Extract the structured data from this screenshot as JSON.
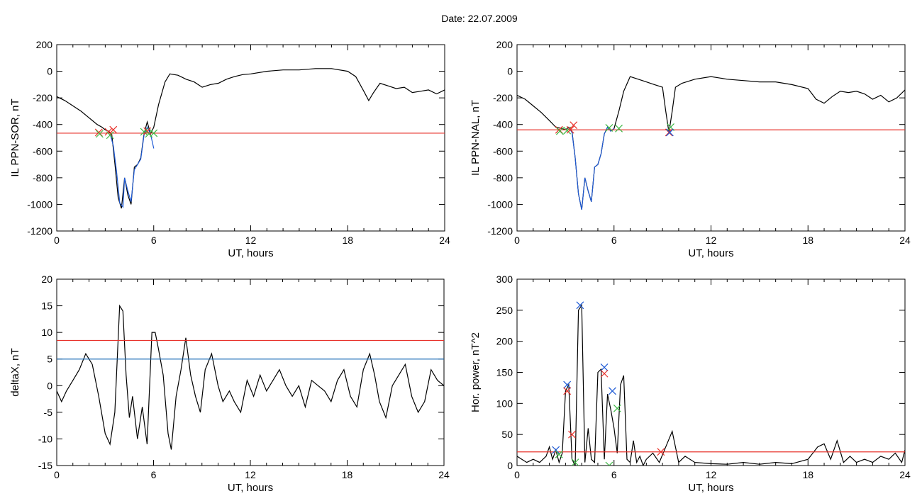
{
  "figure_title": "Date:  22.07.2009",
  "chart_data": [
    {
      "id": "sor",
      "type": "line",
      "ylabel": "IL PPN-SOR, nT",
      "xlabel": "UT, hours",
      "xlim": [
        0,
        24
      ],
      "ylim": [
        -1200,
        200
      ],
      "x_ticks": [
        0,
        6,
        12,
        18,
        24
      ],
      "y_ticks": [
        200,
        0,
        -200,
        -400,
        -600,
        -800,
        -1000,
        -1200
      ],
      "series": [
        {
          "color": "#000000",
          "x": [
            0,
            0.5,
            1,
            1.5,
            2,
            2.5,
            2.8,
            3.0,
            3.2,
            3.4,
            3.6,
            3.8,
            4.0,
            4.2,
            4.4,
            4.6,
            4.8,
            5.0,
            5.2,
            5.4,
            5.6,
            5.8,
            6.0,
            6.3,
            6.7,
            7.0,
            7.5,
            8,
            8.5,
            9,
            9.5,
            10,
            10.5,
            11,
            11.5,
            12,
            13,
            14,
            15,
            16,
            17,
            18,
            18.5,
            19,
            19.3,
            19.6,
            20,
            20.5,
            21,
            21.5,
            22,
            22.5,
            23,
            23.5,
            24
          ],
          "y": [
            -190,
            -220,
            -260,
            -300,
            -350,
            -400,
            -420,
            -440,
            -450,
            -470,
            -700,
            -950,
            -1030,
            -800,
            -930,
            -1000,
            -720,
            -700,
            -650,
            -470,
            -380,
            -470,
            -420,
            -250,
            -80,
            -20,
            -30,
            -60,
            -80,
            -120,
            -100,
            -90,
            -60,
            -40,
            -25,
            -20,
            0,
            10,
            10,
            20,
            20,
            0,
            -40,
            -150,
            -220,
            -160,
            -90,
            -110,
            -130,
            -120,
            -160,
            -150,
            -140,
            -170,
            -140
          ]
        },
        {
          "color": "#1f5bd6",
          "x": [
            3.3,
            3.5,
            3.7,
            3.9,
            4.1,
            4.2,
            4.4,
            4.6,
            4.8,
            5.0,
            5.2,
            5.4,
            5.6,
            5.8,
            6.0
          ],
          "y": [
            -470,
            -560,
            -750,
            -990,
            -1020,
            -800,
            -900,
            -980,
            -740,
            -700,
            -660,
            -480,
            -420,
            -470,
            -580
          ]
        }
      ],
      "threshold": {
        "value": -465,
        "color": "#e8312a"
      },
      "markers": [
        {
          "x": 2.6,
          "y": -460,
          "symbol": "x",
          "color": "#e8312a"
        },
        {
          "x": 2.65,
          "y": -470,
          "symbol": "x",
          "color": "#3cb843"
        },
        {
          "x": 3.2,
          "y": -455,
          "symbol": "x",
          "color": "#e8312a"
        },
        {
          "x": 3.5,
          "y": -440,
          "symbol": "x",
          "color": "#e8312a"
        },
        {
          "x": 3.3,
          "y": -480,
          "symbol": "x",
          "color": "#3cb843"
        },
        {
          "x": 5.4,
          "y": -455,
          "symbol": "x",
          "color": "#3cb843"
        },
        {
          "x": 5.6,
          "y": -450,
          "symbol": "x",
          "color": "#e8312a"
        },
        {
          "x": 5.7,
          "y": -470,
          "symbol": "x",
          "color": "#3cb843"
        },
        {
          "x": 6.0,
          "y": -465,
          "symbol": "x",
          "color": "#3cb843"
        }
      ]
    },
    {
      "id": "nal",
      "type": "line",
      "ylabel": "IL PPN-NAL, nT",
      "xlabel": "UT, hours",
      "xlim": [
        0,
        24
      ],
      "ylim": [
        -1200,
        200
      ],
      "x_ticks": [
        0,
        6,
        12,
        18,
        24
      ],
      "y_ticks": [
        200,
        0,
        -200,
        -400,
        -600,
        -800,
        -1000,
        -1200
      ],
      "series": [
        {
          "color": "#000000",
          "x": [
            0,
            0.5,
            1,
            1.5,
            2,
            2.4,
            2.8,
            3.0,
            3.2,
            3.4,
            3.6,
            3.8,
            4.0,
            4.2,
            4.4,
            4.6,
            4.8,
            5.0,
            5.2,
            5.4,
            5.6,
            5.8,
            6.0,
            6.3,
            6.6,
            7.0,
            7.5,
            8,
            8.5,
            9.0,
            9.2,
            9.4,
            9.6,
            9.8,
            10.2,
            11,
            12,
            13,
            14,
            15,
            16,
            17,
            18,
            18.5,
            19,
            19.5,
            20,
            20.5,
            21,
            21.5,
            22,
            22.5,
            23,
            23.5,
            24
          ],
          "y": [
            -180,
            -210,
            -260,
            -310,
            -370,
            -420,
            -430,
            -440,
            -420,
            -450,
            -650,
            -920,
            -1040,
            -800,
            -900,
            -980,
            -720,
            -700,
            -620,
            -470,
            -420,
            -450,
            -430,
            -300,
            -150,
            -40,
            -60,
            -80,
            -100,
            -120,
            -300,
            -460,
            -300,
            -120,
            -90,
            -60,
            -40,
            -60,
            -70,
            -80,
            -80,
            -100,
            -130,
            -210,
            -240,
            -190,
            -150,
            -160,
            -150,
            -170,
            -210,
            -180,
            -230,
            -200,
            -140
          ]
        },
        {
          "color": "#1f5bd6",
          "x": [
            3.2,
            3.4,
            3.6,
            3.8,
            4.0,
            4.2,
            4.4,
            4.6,
            4.8,
            5.0,
            5.2,
            5.4,
            5.6,
            5.8,
            6.0
          ],
          "y": [
            -420,
            -460,
            -650,
            -920,
            -1040,
            -800,
            -900,
            -980,
            -720,
            -700,
            -620,
            -470,
            -420,
            -450,
            -430
          ]
        }
      ],
      "threshold": {
        "value": -440,
        "color": "#e8312a"
      },
      "markers": [
        {
          "x": 2.6,
          "y": -440,
          "symbol": "x",
          "color": "#e8312a"
        },
        {
          "x": 2.65,
          "y": -450,
          "symbol": "x",
          "color": "#3cb843"
        },
        {
          "x": 3.1,
          "y": -445,
          "symbol": "x",
          "color": "#3cb843"
        },
        {
          "x": 3.3,
          "y": -440,
          "symbol": "x",
          "color": "#e8312a"
        },
        {
          "x": 3.5,
          "y": -405,
          "symbol": "x",
          "color": "#e8312a"
        },
        {
          "x": 5.7,
          "y": -425,
          "symbol": "x",
          "color": "#3cb843"
        },
        {
          "x": 6.3,
          "y": -430,
          "symbol": "x",
          "color": "#3cb843"
        },
        {
          "x": 9.4,
          "y": -460,
          "symbol": "x",
          "color": "#e8312a"
        },
        {
          "x": 9.5,
          "y": -420,
          "symbol": "x",
          "color": "#3cb843"
        },
        {
          "x": 9.45,
          "y": -460,
          "symbol": "x",
          "color": "#1f5bd6"
        }
      ]
    },
    {
      "id": "deltax",
      "type": "line",
      "ylabel": "deltaX, nT",
      "xlabel": "UT, hours",
      "xlim": [
        0,
        24
      ],
      "ylim": [
        -15,
        20
      ],
      "x_ticks": [
        0,
        6,
        12,
        18,
        24
      ],
      "y_ticks": [
        20,
        15,
        10,
        5,
        0,
        -5,
        -10,
        -15
      ],
      "series": [
        {
          "color": "#000000",
          "x": [
            0,
            0.3,
            0.6,
            1.0,
            1.4,
            1.8,
            2.2,
            2.6,
            3.0,
            3.3,
            3.6,
            3.9,
            4.1,
            4.3,
            4.5,
            4.7,
            5.0,
            5.3,
            5.6,
            5.9,
            6.1,
            6.3,
            6.6,
            6.9,
            7.1,
            7.4,
            7.7,
            8.0,
            8.3,
            8.6,
            8.9,
            9.2,
            9.6,
            10.0,
            10.3,
            10.7,
            11.0,
            11.4,
            11.8,
            12.2,
            12.6,
            13.0,
            13.4,
            13.8,
            14.2,
            14.6,
            15.0,
            15.4,
            15.8,
            16.2,
            16.6,
            17.0,
            17.4,
            17.8,
            18.2,
            18.6,
            19.0,
            19.4,
            19.7,
            20.0,
            20.4,
            20.8,
            21.2,
            21.6,
            22.0,
            22.4,
            22.8,
            23.2,
            23.6,
            24.0
          ],
          "y": [
            -1,
            -3,
            -1,
            1,
            3,
            6,
            4,
            -2,
            -9,
            -11,
            -5,
            15,
            14,
            2,
            -6,
            -2,
            -10,
            -4,
            -11,
            10,
            10,
            7,
            2,
            -9,
            -12,
            -2,
            3,
            9,
            2,
            -2,
            -5,
            3,
            6,
            0,
            -3,
            -1,
            -3,
            -5,
            1,
            -2,
            2,
            -1,
            1,
            3,
            0,
            -2,
            0,
            -4,
            1,
            0,
            -1,
            -3,
            1,
            3,
            -2,
            -4,
            3,
            6,
            2,
            -3,
            -6,
            0,
            2,
            4,
            -2,
            -5,
            -3,
            3,
            1,
            0
          ]
        }
      ],
      "threshold": {
        "value": 8.5,
        "color": "#e8312a"
      },
      "threshold2": {
        "value": 5,
        "color": "#1f6fb8"
      }
    },
    {
      "id": "power",
      "type": "line",
      "ylabel": "Hor. power, nT^2",
      "xlabel": "UT, hours",
      "xlim": [
        0,
        24
      ],
      "ylim": [
        0,
        300
      ],
      "x_ticks": [
        0,
        6,
        12,
        18,
        24
      ],
      "y_ticks": [
        300,
        250,
        200,
        150,
        100,
        50,
        0
      ],
      "series": [
        {
          "color": "#000000",
          "x": [
            0,
            0.3,
            0.6,
            1.0,
            1.4,
            1.8,
            2.0,
            2.2,
            2.4,
            2.6,
            2.8,
            3.0,
            3.2,
            3.4,
            3.6,
            3.8,
            4.0,
            4.2,
            4.4,
            4.6,
            4.8,
            5.0,
            5.2,
            5.4,
            5.6,
            5.8,
            6.0,
            6.2,
            6.4,
            6.6,
            6.8,
            7.0,
            7.2,
            7.4,
            7.6,
            7.8,
            8.0,
            8.4,
            8.8,
            9.2,
            9.6,
            10.0,
            10.4,
            11,
            12,
            13,
            14,
            15,
            16,
            17,
            18,
            18.6,
            19.0,
            19.4,
            19.8,
            20.2,
            20.6,
            21.0,
            21.5,
            22.0,
            22.5,
            23.0,
            23.4,
            23.8,
            24.0
          ],
          "y": [
            15,
            10,
            5,
            10,
            5,
            15,
            30,
            10,
            25,
            5,
            20,
            120,
            130,
            10,
            0,
            250,
            258,
            5,
            60,
            10,
            5,
            150,
            155,
            10,
            115,
            90,
            60,
            20,
            130,
            145,
            10,
            5,
            40,
            5,
            15,
            0,
            10,
            20,
            5,
            30,
            55,
            5,
            15,
            5,
            3,
            2,
            5,
            2,
            5,
            3,
            10,
            30,
            35,
            10,
            40,
            5,
            15,
            5,
            10,
            5,
            15,
            10,
            20,
            5,
            25
          ]
        }
      ],
      "threshold": {
        "value": 22,
        "color": "#e8312a"
      },
      "markers": [
        {
          "x": 3.1,
          "y": 130,
          "symbol": "x",
          "color": "#1f5bd6"
        },
        {
          "x": 3.1,
          "y": 120,
          "symbol": "x",
          "color": "#e8312a"
        },
        {
          "x": 3.4,
          "y": 50,
          "symbol": "x",
          "color": "#e8312a"
        },
        {
          "x": 3.6,
          "y": 5,
          "symbol": "x",
          "color": "#3cb843"
        },
        {
          "x": 3.9,
          "y": 258,
          "symbol": "x",
          "color": "#1f5bd6"
        },
        {
          "x": 5.4,
          "y": 158,
          "symbol": "x",
          "color": "#1f5bd6"
        },
        {
          "x": 5.4,
          "y": 148,
          "symbol": "x",
          "color": "#e8312a"
        },
        {
          "x": 5.7,
          "y": 0,
          "symbol": "x",
          "color": "#3cb843"
        },
        {
          "x": 5.9,
          "y": 120,
          "symbol": "x",
          "color": "#1f5bd6"
        },
        {
          "x": 6.2,
          "y": 92,
          "symbol": "x",
          "color": "#3cb843"
        },
        {
          "x": 2.4,
          "y": 25,
          "symbol": "x",
          "color": "#1f5bd6"
        },
        {
          "x": 2.6,
          "y": 18,
          "symbol": "x",
          "color": "#3cb843"
        },
        {
          "x": 8.9,
          "y": 22,
          "symbol": "x",
          "color": "#e8312a"
        }
      ]
    }
  ]
}
